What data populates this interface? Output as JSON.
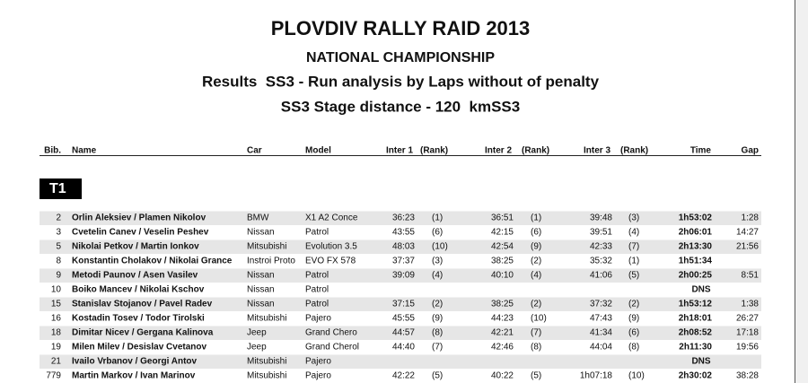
{
  "title": "PLOVDIV RALLY RAID 2013",
  "subtitle": "NATIONAL CHAMPIONSHIP",
  "heading": "Results  SS3 - Run analysis by Laps without of penalty",
  "distance": "SS3 Stage distance - 120  kmSS3",
  "table": {
    "header": [
      "Bib.",
      "Name",
      "Car",
      "Model",
      "Inter 1",
      "(Rank)",
      "Inter 2",
      "(Rank)",
      "Inter 3",
      "(Rank)",
      "Time",
      "Gap"
    ],
    "class": "T1",
    "rows": [
      [
        2,
        "Orlin Aleksiev / Plamen Nikolov",
        "BMW",
        "X1 A2 Conce",
        "36:23",
        "(1)",
        "36:51",
        "(1)",
        "39:48",
        "(3)",
        "1h53:02",
        "1:28"
      ],
      [
        3,
        "Cvetelin Canev / Veselin Peshev",
        "Nissan",
        "Patrol",
        "43:55",
        "(6)",
        "42:15",
        "(6)",
        "39:51",
        "(4)",
        "2h06:01",
        "14:27"
      ],
      [
        5,
        "Nikolai Petkov / Martin Ionkov",
        "Mitsubishi",
        "Evolution 3.5",
        "48:03",
        "(10)",
        "42:54",
        "(9)",
        "42:33",
        "(7)",
        "2h13:30",
        "21:56"
      ],
      [
        8,
        "Konstantin Cholakov / Nikolai Grance",
        "Instroi Proto",
        "EVO FX 578",
        "37:37",
        "(3)",
        "38:25",
        "(2)",
        "35:32",
        "(1)",
        "1h51:34",
        null
      ],
      [
        9,
        "Metodi Paunov / Asen Vasilev",
        "Nissan",
        "Patrol",
        "39:09",
        "(4)",
        "40:10",
        "(4)",
        "41:06",
        "(5)",
        "2h00:25",
        "8:51"
      ],
      [
        10,
        "Boiko Mancev / Nikolai Kschov",
        "Nissan",
        "Patrol",
        null,
        null,
        null,
        null,
        null,
        null,
        "DNS",
        null
      ],
      [
        15,
        "Stanislav Stojanov / Pavel Radev",
        "Nissan",
        "Patrol",
        "37:15",
        "(2)",
        "38:25",
        "(2)",
        "37:32",
        "(2)",
        "1h53:12",
        "1:38"
      ],
      [
        16,
        "Kostadin Tosev / Todor Tirolski",
        "Mitsubishi",
        "Pajero",
        "45:55",
        "(9)",
        "44:23",
        "(10)",
        "47:43",
        "(9)",
        "2h18:01",
        "26:27"
      ],
      [
        18,
        "Dimitar Nicev / Gergana Kalinova",
        "Jeep",
        "Grand Chero",
        "44:57",
        "(8)",
        "42:21",
        "(7)",
        "41:34",
        "(6)",
        "2h08:52",
        "17:18"
      ],
      [
        19,
        "Milen Milev / Desislav Cvetanov",
        "Jeep",
        "Grand Cherol",
        "44:40",
        "(7)",
        "42:46",
        "(8)",
        "44:04",
        "(8)",
        "2h11:30",
        "19:56"
      ],
      [
        21,
        "Ivailo Vrbanov / Georgi Antov",
        "Mitsubishi",
        "Pajero",
        null,
        null,
        null,
        null,
        null,
        null,
        "DNS",
        null
      ],
      [
        779,
        "Martin Markov / Ivan Marinov",
        "Mitsubishi",
        "Pajero",
        "42:22",
        "(5)",
        "40:22",
        "(5)",
        "1h07:18",
        "(10)",
        "2h30:02",
        "38:28"
      ]
    ]
  }
}
